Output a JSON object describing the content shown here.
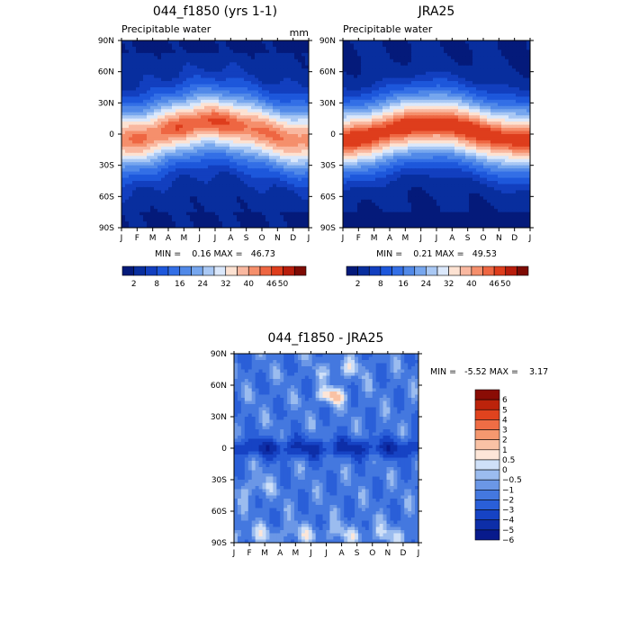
{
  "chart_data": [
    {
      "type": "heatmap",
      "title": "044_f1850 (yrs 1-1)",
      "subtitle": "Precipitable water",
      "units": "mm",
      "xlabel": "",
      "ylabel": "",
      "x_ticks": [
        "J",
        "F",
        "M",
        "A",
        "M",
        "J",
        "J",
        "A",
        "S",
        "O",
        "N",
        "D",
        "J"
      ],
      "y_ticks": [
        "90N",
        "60N",
        "30N",
        "0",
        "30S",
        "60S",
        "90S"
      ],
      "ylim": [
        -90,
        90
      ],
      "stats_text": "MIN =    0.16 MAX =   46.73",
      "min": 0.16,
      "max": 46.73,
      "colorbar": {
        "levels": [
          0,
          2,
          5,
          8,
          12,
          16,
          20,
          24,
          28,
          32,
          36,
          40,
          43,
          46,
          50,
          53
        ],
        "colors": [
          "#041a7a",
          "#082e9e",
          "#123fbf",
          "#1d57db",
          "#336fe6",
          "#5189e8",
          "#76a6ee",
          "#a9c8f4",
          "#dbe8fb",
          "#fde2d2",
          "#f9b8a0",
          "#f58f6c",
          "#ee6642",
          "#de3d1c",
          "#b81d0c",
          "#7e0b04"
        ],
        "labels": [
          "2",
          "8",
          "16",
          "24",
          "32",
          "40",
          "46",
          "50"
        ],
        "label_levels": [
          2,
          8,
          16,
          24,
          32,
          40,
          46,
          50
        ]
      }
    },
    {
      "type": "heatmap",
      "title": "JRA25",
      "subtitle": "Precipitable water",
      "x_ticks": [
        "J",
        "F",
        "M",
        "A",
        "M",
        "J",
        "J",
        "A",
        "S",
        "O",
        "N",
        "D",
        "J"
      ],
      "y_ticks": [
        "90N",
        "60N",
        "30N",
        "0",
        "30S",
        "60S",
        "90S"
      ],
      "ylim": [
        -90,
        90
      ],
      "stats_text": "MIN =    0.21 MAX =   49.53",
      "min": 0.21,
      "max": 49.53,
      "colorbar": {
        "levels": [
          0,
          2,
          5,
          8,
          12,
          16,
          20,
          24,
          28,
          32,
          36,
          40,
          43,
          46,
          50,
          53
        ],
        "colors": [
          "#041a7a",
          "#082e9e",
          "#123fbf",
          "#1d57db",
          "#336fe6",
          "#5189e8",
          "#76a6ee",
          "#a9c8f4",
          "#dbe8fb",
          "#fde2d2",
          "#f9b8a0",
          "#f58f6c",
          "#ee6642",
          "#de3d1c",
          "#b81d0c",
          "#7e0b04"
        ],
        "labels": [
          "2",
          "8",
          "16",
          "24",
          "32",
          "40",
          "46",
          "50"
        ],
        "label_levels": [
          2,
          8,
          16,
          24,
          32,
          40,
          46,
          50
        ]
      }
    },
    {
      "type": "heatmap",
      "title": "044_f1850 - JRA25",
      "x_ticks": [
        "J",
        "F",
        "M",
        "A",
        "M",
        "J",
        "J",
        "A",
        "S",
        "O",
        "N",
        "D",
        "J"
      ],
      "y_ticks": [
        "90N",
        "60N",
        "30N",
        "0",
        "30S",
        "60S",
        "90S"
      ],
      "ylim": [
        -90,
        90
      ],
      "stats_text": "MIN =   -5.52 MAX =    3.17",
      "min": -5.52,
      "max": 3.17,
      "colorbar": {
        "levels": [
          -6,
          -5,
          -4,
          -3,
          -2,
          -1,
          -0.5,
          0,
          0.5,
          1,
          2,
          3,
          4,
          5,
          6
        ],
        "colors": [
          "#081a8c",
          "#0d2ea8",
          "#1643c4",
          "#2a5fd8",
          "#4478df",
          "#6b97e6",
          "#9bbcef",
          "#cfe0f8",
          "#fde6d8",
          "#f9c2a5",
          "#f5986f",
          "#ef6d45",
          "#e0431e",
          "#bc230b",
          "#8a0c05"
        ],
        "labels": [
          "6",
          "5",
          "4",
          "3",
          "2",
          "1",
          "0.5",
          "0",
          "−0.5",
          "−1",
          "−2",
          "−3",
          "−4",
          "−5",
          "−6"
        ]
      }
    }
  ]
}
